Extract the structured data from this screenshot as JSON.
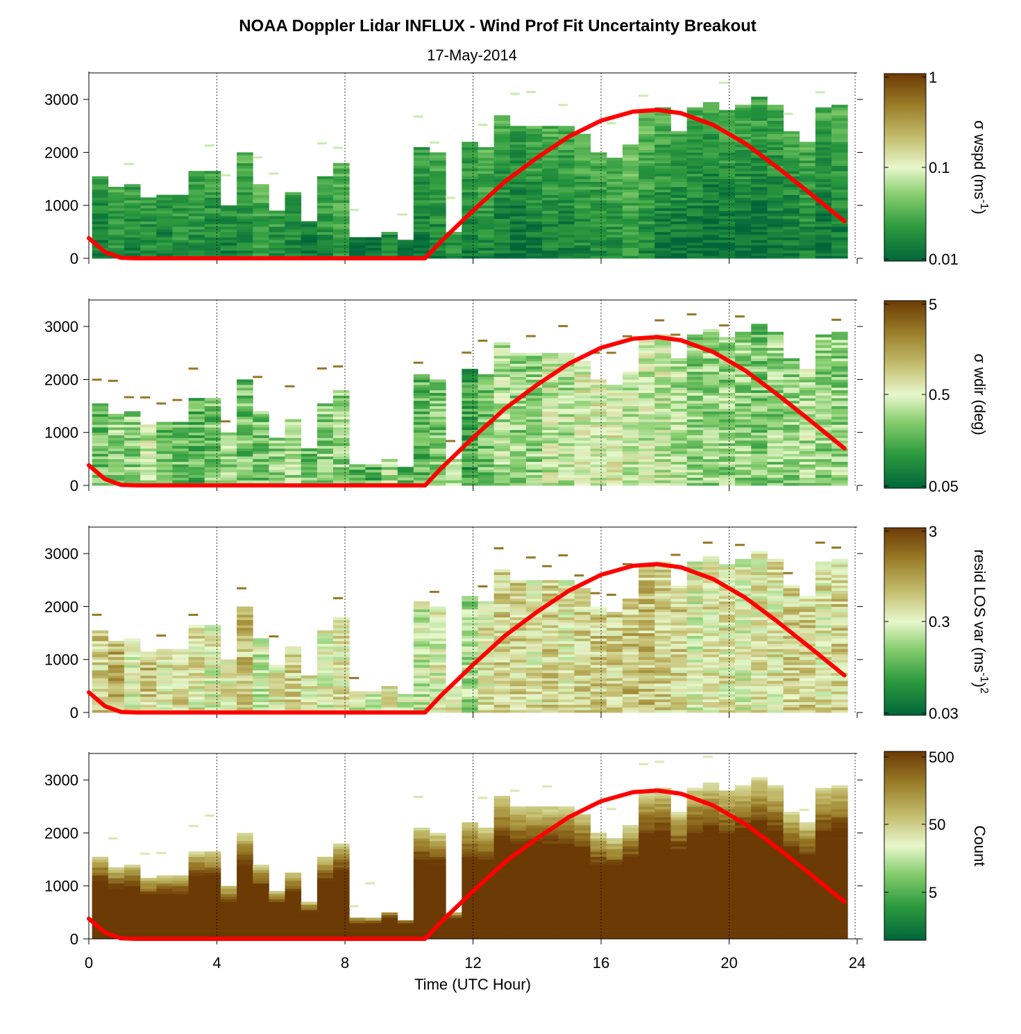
{
  "chart_data": {
    "type": "heatmap",
    "title": "NOAA Doppler Lidar INFLUX - Wind Prof Fit Uncertainty Breakout",
    "subtitle": "17-May-2014",
    "xlabel": "Time (UTC Hour)",
    "xlim": [
      0,
      24
    ],
    "x_ticks": [
      "0",
      "4",
      "8",
      "12",
      "16",
      "20",
      "24"
    ],
    "x_tick_values": [
      0,
      4,
      8,
      12,
      16,
      20,
      24
    ],
    "ylim": [
      0,
      3500
    ],
    "y_ticks": [
      "0",
      "1000",
      "2000",
      "3000"
    ],
    "y_tick_values": [
      0,
      1000,
      2000,
      3000
    ],
    "grid": "vertical dotted lines at 4-hour intervals",
    "colormap": [
      "#00663a",
      "#2c9a3e",
      "#84cc6c",
      "#e8f7cc",
      "#c3bd6e",
      "#9a7d28",
      "#6b3a05"
    ],
    "column_top_heights_m": [
      1550,
      1350,
      1400,
      1150,
      1200,
      1200,
      1650,
      1650,
      1000,
      2000,
      1400,
      930,
      1250,
      700,
      1550,
      1800,
      400,
      400,
      520,
      380,
      2100,
      2000,
      500,
      2200,
      2100,
      2700,
      2500,
      2500,
      2500,
      2530,
      2380,
      2000,
      1900,
      2150,
      2800,
      2850,
      2400,
      2850,
      2950,
      2800,
      2900,
      3050,
      2900,
      2400,
      2200,
      2850,
      2900
    ],
    "sun_elevation_curve": {
      "color": "#ff0000",
      "x": [
        0.0,
        0.5,
        1.0,
        1.5,
        10.5,
        11.0,
        12.0,
        13.0,
        14.0,
        15.0,
        16.0,
        17.0,
        17.75,
        18.5,
        19.5,
        20.5,
        21.5,
        22.5,
        23.6
      ],
      "y": [
        380,
        120,
        10,
        0,
        0,
        320,
        900,
        1450,
        1900,
        2300,
        2600,
        2770,
        2800,
        2740,
        2520,
        2170,
        1720,
        1240,
        700
      ]
    },
    "panels": [
      {
        "id": "wspd",
        "colorbar_label": "σ wspd (ms",
        "colorbar_label_sup": "-1",
        "colorbar_label_tail": ")",
        "colorbar_ticks": [
          "1",
          "0.1",
          "0.01"
        ],
        "colorbar_tick_values": [
          1,
          0.1,
          0.01
        ],
        "scale": "log",
        "column_levels": [
          0.15,
          0.22,
          0.2,
          0.2,
          0.18,
          0.22,
          0.2,
          0.18,
          0.18,
          0.2,
          0.25,
          0.22,
          0.2,
          0.15,
          0.22,
          0.25,
          0.12,
          0.12,
          0.2,
          0.15,
          0.15,
          0.18,
          0.22,
          0.15,
          0.2,
          0.15,
          0.12,
          0.15,
          0.18,
          0.15,
          0.2,
          0.2,
          0.22,
          0.25,
          0.2,
          0.15,
          0.15,
          0.12,
          0.1,
          0.12,
          0.12,
          0.1,
          0.12,
          0.15,
          0.18,
          0.12,
          0.15
        ]
      },
      {
        "id": "wdir",
        "colorbar_label": "σ wdir (deg)",
        "colorbar_label_sup": "",
        "colorbar_label_tail": "",
        "colorbar_ticks": [
          "5",
          "0.5",
          "0.05"
        ],
        "colorbar_tick_values": [
          5,
          0.5,
          0.05
        ],
        "scale": "log",
        "column_levels": [
          0.3,
          0.35,
          0.35,
          0.45,
          0.3,
          0.3,
          0.25,
          0.3,
          0.35,
          0.3,
          0.3,
          0.35,
          0.4,
          0.3,
          0.35,
          0.35,
          0.25,
          0.25,
          0.4,
          0.25,
          0.25,
          0.3,
          0.35,
          0.2,
          0.3,
          0.4,
          0.35,
          0.35,
          0.45,
          0.4,
          0.5,
          0.5,
          0.5,
          0.45,
          0.45,
          0.45,
          0.4,
          0.35,
          0.35,
          0.35,
          0.35,
          0.3,
          0.35,
          0.35,
          0.4,
          0.35,
          0.35
        ]
      },
      {
        "id": "resid",
        "colorbar_label": "resid LOS var (ms",
        "colorbar_label_sup": "-1",
        "colorbar_label_tail": ")",
        "colorbar_label_sup2": "2",
        "colorbar_ticks": [
          "3",
          "0.3",
          "0.03"
        ],
        "colorbar_tick_values": [
          3,
          0.3,
          0.03
        ],
        "scale": "log",
        "column_levels": [
          0.6,
          0.7,
          0.5,
          0.65,
          0.55,
          0.6,
          0.55,
          0.5,
          0.55,
          0.65,
          0.45,
          0.55,
          0.6,
          0.55,
          0.5,
          0.55,
          0.45,
          0.45,
          0.55,
          0.45,
          0.45,
          0.5,
          0.55,
          0.4,
          0.55,
          0.6,
          0.6,
          0.55,
          0.6,
          0.55,
          0.6,
          0.62,
          0.6,
          0.65,
          0.65,
          0.6,
          0.6,
          0.5,
          0.55,
          0.55,
          0.5,
          0.55,
          0.55,
          0.6,
          0.6,
          0.55,
          0.6
        ]
      },
      {
        "id": "count",
        "colorbar_label": "Count",
        "colorbar_label_sup": "",
        "colorbar_label_tail": "",
        "colorbar_ticks": [
          "500",
          "50",
          "5"
        ],
        "colorbar_tick_values": [
          500,
          50,
          5
        ],
        "scale": "log",
        "column_levels": [
          0.95,
          0.9,
          0.9,
          0.92,
          0.92,
          0.9,
          0.92,
          0.92,
          0.9,
          0.92,
          0.9,
          0.9,
          0.9,
          0.9,
          0.92,
          0.9,
          0.95,
          0.95,
          0.9,
          0.95,
          0.9,
          0.9,
          0.92,
          0.9,
          0.9,
          0.9,
          0.9,
          0.9,
          0.9,
          0.9,
          0.92,
          0.92,
          0.95,
          0.95,
          0.95,
          0.95,
          0.95,
          0.95,
          0.95,
          0.95,
          0.95,
          0.95,
          0.95,
          0.95,
          0.95,
          0.95,
          0.95
        ]
      }
    ]
  }
}
